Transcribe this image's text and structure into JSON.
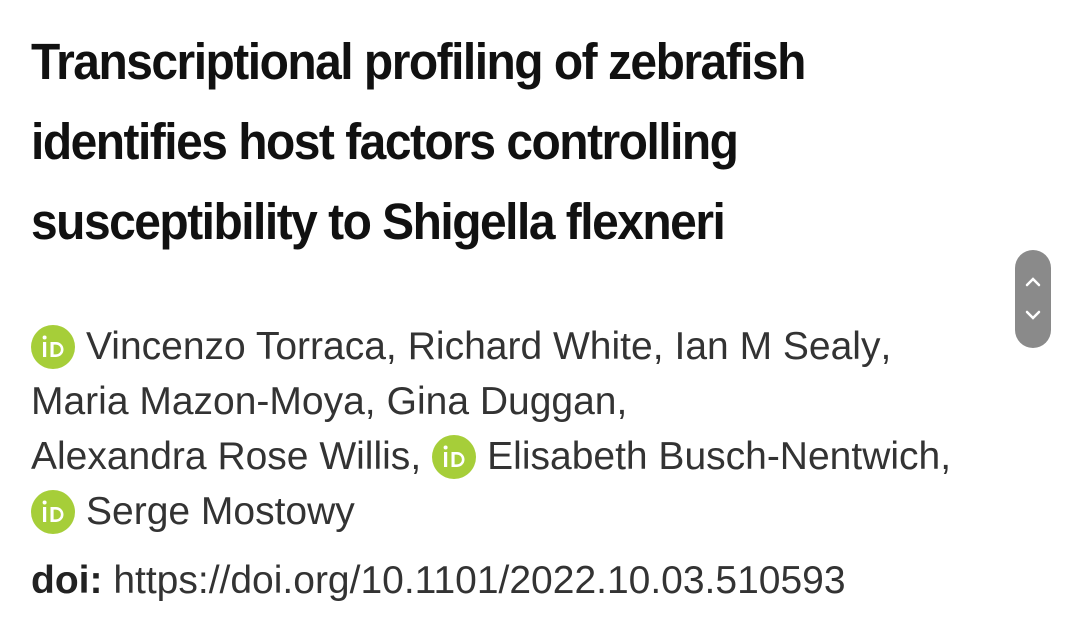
{
  "article": {
    "title_lines": [
      "Transcriptional profiling of zebrafish",
      "identifies host factors controlling",
      "susceptibility to Shigella flexneri"
    ],
    "author_lines": [
      [
        {
          "name": "Vincenzo Torraca",
          "separator": ",",
          "orcid": true
        },
        {
          "name": "Richard White",
          "separator": ",",
          "orcid": false
        },
        {
          "name": "Ian M Sealy",
          "separator": ",",
          "orcid": false
        }
      ],
      [
        {
          "name": "Maria Mazon-Moya",
          "separator": ",",
          "orcid": false
        },
        {
          "name": "Gina Duggan",
          "separator": ",",
          "orcid": false
        }
      ],
      [
        {
          "name": "Alexandra Rose Willis",
          "separator": ",",
          "orcid": false
        },
        {
          "name": "Elisabeth Busch-Nentwich",
          "separator": ",",
          "orcid": true
        }
      ],
      [
        {
          "name": "Serge Mostowy",
          "orcid": true
        }
      ]
    ],
    "doi_label": "doi:",
    "doi_url": "https://doi.org/10.1101/2022.10.03.510593"
  }
}
